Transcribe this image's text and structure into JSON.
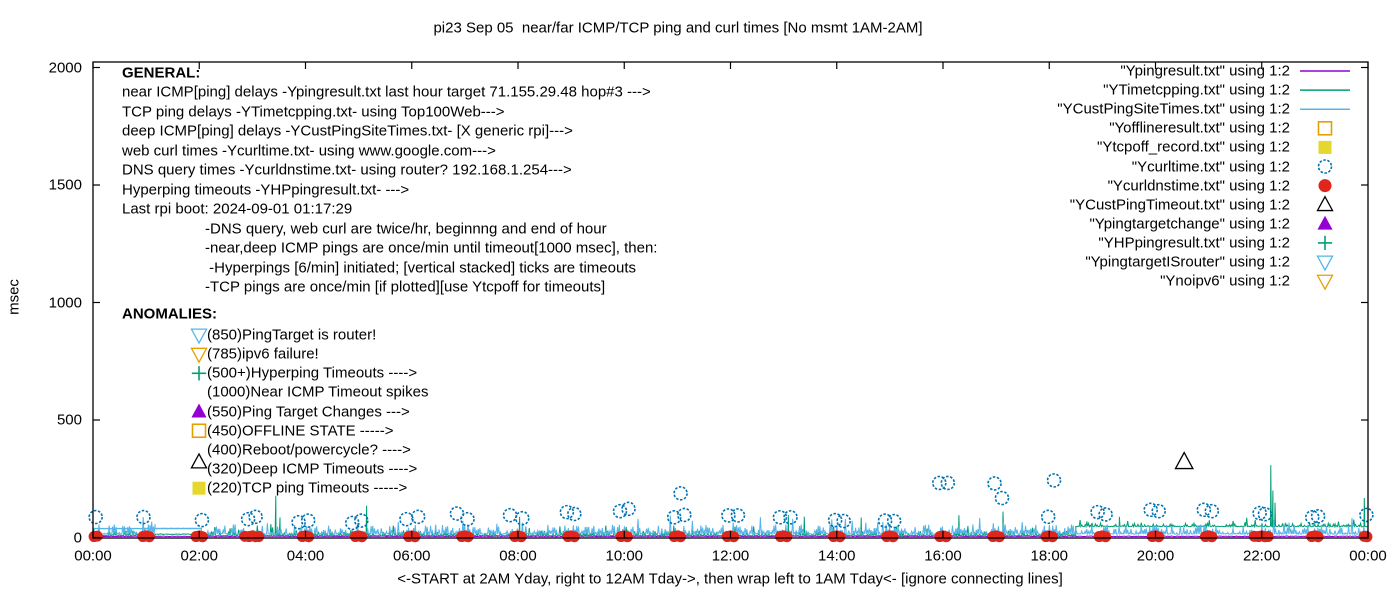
{
  "chart_data": {
    "type": "line+scatter",
    "title": "pi23 Sep 05  near/far ICMP/TCP ping and curl times [No msmt 1AM-2AM]",
    "ylabel": "msec",
    "xlabel": "<-START at 2AM Yday, right to 12AM Tday->, then wrap left to 1AM Tday<- [ignore connecting lines]",
    "x_axis": {
      "range_hours": [
        0,
        24
      ],
      "tick_hours": [
        0,
        2,
        4,
        6,
        8,
        10,
        12,
        14,
        16,
        18,
        20,
        22,
        24
      ],
      "tick_labels": [
        "00:00",
        "02:00",
        "04:00",
        "06:00",
        "08:00",
        "10:00",
        "12:00",
        "14:00",
        "16:00",
        "18:00",
        "20:00",
        "22:00",
        "00:00"
      ]
    },
    "y_axis": {
      "range": [
        0,
        2000
      ],
      "ticks": [
        0,
        500,
        1000,
        1500,
        2000
      ],
      "tick_labels": [
        "0",
        "500",
        "1000",
        "1500",
        "2000"
      ]
    },
    "colors": {
      "purple": "#9400d3",
      "seagreen": "#009e73",
      "skyblue": "#56b4e9",
      "orange": "#e69f00",
      "yellow": "#e6d72e",
      "blue": "#0072b2",
      "red": "#e0261a",
      "black": "#000000"
    },
    "legend": {
      "entries": [
        {
          "label": "\"Ypingresult.txt\" using 1:2",
          "color": "#9400d3",
          "style": "line"
        },
        {
          "label": "\"YTimetcpping.txt\" using 1:2",
          "color": "#009e73",
          "style": "line"
        },
        {
          "label": "\"YCustPingSiteTimes.txt\" using 1:2",
          "color": "#56b4e9",
          "style": "line"
        },
        {
          "label": "\"Yofflineresult.txt\" using 1:2",
          "color": "#e69f00",
          "style": "square-open"
        },
        {
          "label": "\"Ytcpoff_record.txt\" using 1:2",
          "color": "#e6d72e",
          "style": "square-filled"
        },
        {
          "label": "\"Ycurltime.txt\" using 1:2",
          "color": "#0072b2",
          "style": "circle-open"
        },
        {
          "label": "\"Ycurldnstime.txt\" using 1:2",
          "color": "#e0261a",
          "style": "circle-filled"
        },
        {
          "label": "\"YCustPingTimeout.txt\" using 1:2",
          "color": "#000000",
          "style": "tri-up-open"
        },
        {
          "label": "\"Ypingtargetchange\" using 1:2",
          "color": "#9400d3",
          "style": "tri-up-filled"
        },
        {
          "label": "\"YHPpingresult.txt\" using 1:2",
          "color": "#009e73",
          "style": "plus"
        },
        {
          "label": "\"YpingtargetISrouter\" using 1:2",
          "color": "#56b4e9",
          "style": "tri-down-open"
        },
        {
          "label": "\"Ynoipv6\" using 1:2",
          "color": "#e69f00",
          "style": "tri-down-open"
        }
      ]
    },
    "annotations": {
      "general": {
        "heading": "GENERAL:",
        "lines": [
          "near ICMP[ping] delays -Ypingresult.txt last hour target 71.155.29.48 hop#3 --->",
          "TCP ping delays -YTimetcpping.txt- using Top100Web--->",
          "deep ICMP[ping] delays -YCustPingSiteTimes.txt- [X generic rpi]--->",
          "web curl times -Ycurltime.txt- using www.google.com--->",
          "DNS query times -Ycurldnstime.txt- using router? 192.168.1.254--->",
          "Hyperping timeouts -YHPpingresult.txt- --->",
          "Last rpi boot: 2024-09-01 01:17:29"
        ],
        "indented_lines": [
          "-DNS query, web curl are twice/hr, beginnng and end of hour",
          "-near,deep ICMP pings are once/min until timeout[1000 msec], then:",
          " -Hyperpings [6/min] initiated; [vertical stacked] ticks are timeouts",
          "-TCP pings are once/min [if plotted][use Ytcpoff for timeouts]"
        ]
      },
      "anomalies": {
        "heading": "ANOMALIES:",
        "items": [
          {
            "marker": "tri-down-open",
            "color": "#56b4e9",
            "label": "(850)PingTarget is router!"
          },
          {
            "marker": "tri-down-open",
            "color": "#e69f00",
            "label": "(785)ipv6 failure!"
          },
          {
            "marker": "plus",
            "color": "#009e73",
            "label": "(500+)Hyperping Timeouts ---->"
          },
          {
            "marker": null,
            "color": null,
            "label": "(1000)Near ICMP Timeout spikes"
          },
          {
            "marker": "tri-up-filled",
            "color": "#9400d3",
            "label": "(550)Ping Target Changes --->"
          },
          {
            "marker": "square-open",
            "color": "#e69f00",
            "label": "(450)OFFLINE STATE ----->"
          },
          {
            "marker": null,
            "color": null,
            "label": "(400)Reboot/powercycle? ---->"
          },
          {
            "marker": "tri-up-open",
            "color": "#000000",
            "label": "(320)Deep ICMP Timeouts ---->",
            "raise": true
          },
          {
            "marker": "square-filled",
            "color": "#e6d72e",
            "label": "(220)TCP ping Timeouts ----->"
          }
        ]
      }
    },
    "series": {
      "ypingresult": {
        "label": "Ypingresult.txt",
        "desc": "near ICMP ping delay",
        "color": "#9400d3",
        "style": "line",
        "segments": [
          {
            "t0": 0,
            "t1": 24,
            "base": 4,
            "amp": 3,
            "spike_rate": 0,
            "spike_amp": 0
          }
        ],
        "spikes": []
      },
      "ytimetcpping": {
        "label": "YTimetcpping.txt",
        "desc": "TCP ping delay",
        "color": "#009e73",
        "style": "line",
        "segments": [
          {
            "t0": 0,
            "t1": 1.17,
            "base": 8,
            "amp": 22,
            "spike_rate": 0.06,
            "spike_amp": 30
          },
          {
            "t0": 1.17,
            "t1": 2.02,
            "base": 13,
            "amp": 3,
            "spike_rate": 0,
            "spike_amp": 0
          },
          {
            "t0": 2.02,
            "t1": 18.5,
            "base": 7,
            "amp": 24,
            "spike_rate": 0.1,
            "spike_amp": 45
          },
          {
            "t0": 18.5,
            "t1": 24,
            "base": 46,
            "amp": 15,
            "spike_rate": 0.08,
            "spike_amp": 28
          }
        ],
        "spikes": [
          [
            3.44,
            178
          ],
          [
            3.52,
            85
          ],
          [
            5.15,
            135
          ],
          [
            8.03,
            88
          ],
          [
            13.09,
            95
          ],
          [
            13.39,
            88
          ],
          [
            14.46,
            85
          ],
          [
            16.3,
            95
          ],
          [
            17.13,
            110
          ],
          [
            19.32,
            88
          ],
          [
            22.17,
            308
          ],
          [
            22.21,
            200
          ],
          [
            22.25,
            148
          ],
          [
            23.93,
            168
          ]
        ]
      },
      "ycustpingsitetimes": {
        "label": "YCustPingSiteTimes.txt",
        "desc": "deep ICMP ping delay",
        "color": "#56b4e9",
        "style": "line",
        "segments": [
          {
            "t0": 0,
            "t1": 1.17,
            "base": 14,
            "amp": 44,
            "spike_rate": 0.12,
            "spike_amp": 35
          },
          {
            "t0": 1.17,
            "t1": 2.05,
            "base": 38,
            "amp": 2,
            "spike_rate": 0,
            "spike_amp": 0
          },
          {
            "t0": 2.05,
            "t1": 24,
            "base": 14,
            "amp": 42,
            "spike_rate": 0.12,
            "spike_amp": 40
          }
        ],
        "spikes": [],
        "flat_overlays": [
          {
            "t0": 0,
            "t1": 2.05,
            "v": 38
          }
        ]
      },
      "ycurltime": {
        "label": "Ycurltime.txt",
        "desc": "web curl times (twice/hr)",
        "color": "#0072b2",
        "style": "circle-open",
        "points": [
          [
            0.05,
            87
          ],
          [
            0.95,
            87
          ],
          [
            2.05,
            74
          ],
          [
            2.92,
            78
          ],
          [
            3.06,
            88
          ],
          [
            3.87,
            65
          ],
          [
            4.05,
            72
          ],
          [
            4.88,
            62
          ],
          [
            5.05,
            72
          ],
          [
            5.9,
            78
          ],
          [
            6.12,
            88
          ],
          [
            6.85,
            102
          ],
          [
            7.05,
            78
          ],
          [
            7.85,
            95
          ],
          [
            8.08,
            82
          ],
          [
            8.92,
            108
          ],
          [
            9.06,
            100
          ],
          [
            9.92,
            112
          ],
          [
            10.08,
            122
          ],
          [
            10.94,
            86
          ],
          [
            11.06,
            188
          ],
          [
            11.13,
            96
          ],
          [
            11.96,
            94
          ],
          [
            12.14,
            94
          ],
          [
            12.93,
            86
          ],
          [
            13.13,
            86
          ],
          [
            13.97,
            74
          ],
          [
            14.13,
            70
          ],
          [
            14.91,
            72
          ],
          [
            15.08,
            70
          ],
          [
            15.93,
            232
          ],
          [
            16.09,
            232
          ],
          [
            16.97,
            230
          ],
          [
            17.11,
            168
          ],
          [
            17.98,
            88
          ],
          [
            18.09,
            243
          ],
          [
            18.91,
            108
          ],
          [
            19.06,
            98
          ],
          [
            19.91,
            118
          ],
          [
            20.06,
            112
          ],
          [
            20.91,
            118
          ],
          [
            21.06,
            112
          ],
          [
            21.96,
            104
          ],
          [
            22.06,
            99
          ],
          [
            22.95,
            86
          ],
          [
            23.06,
            90
          ],
          [
            23.97,
            96
          ]
        ]
      },
      "ycurldnstime": {
        "label": "Ycurldnstime.txt",
        "desc": "DNS query times (twice/hr)",
        "color": "#e0261a",
        "style": "circle-filled",
        "clusters": {
          "hours": [
            0,
            1,
            2,
            3,
            4,
            5,
            6,
            7,
            8,
            9,
            10,
            11,
            12,
            13,
            14,
            15,
            16,
            17,
            18,
            19,
            20,
            21,
            22,
            23,
            24
          ],
          "default_offsets": [
            -0.06,
            0.0,
            0.06
          ],
          "default_values": [
            4,
            7,
            3
          ],
          "wide_hours": [
            3,
            22
          ],
          "wide_extra_offsets": [
            -0.14,
            0.12
          ],
          "wide_extra_values": [
            5,
            4
          ],
          "first_offsets": [
            0.02,
            0.08
          ],
          "first_values": [
            4,
            6
          ],
          "last_offsets": [
            -0.07,
            -0.02
          ],
          "last_values": [
            5,
            3
          ]
        }
      },
      "ycustpingtimeout": {
        "label": "YCustPingTimeout.txt",
        "desc": "deep ICMP timeout",
        "color": "#000000",
        "style": "tri-up-open",
        "points": [
          [
            20.54,
            322
          ]
        ]
      },
      "yofflineresult": {
        "label": "Yofflineresult.txt",
        "color": "#e69f00",
        "style": "square-open",
        "points": []
      },
      "ytcpoff_record": {
        "label": "Ytcpoff_record.txt",
        "color": "#e6d72e",
        "style": "square-filled",
        "points": []
      },
      "ypingtargetchange": {
        "label": "Ypingtargetchange",
        "color": "#9400d3",
        "style": "tri-up-filled",
        "points": []
      },
      "yhppingresult": {
        "label": "YHPpingresult.txt",
        "color": "#009e73",
        "style": "plus",
        "points": []
      },
      "ypingtargetisrouter": {
        "label": "YpingtargetISrouter",
        "color": "#56b4e9",
        "style": "tri-down-open",
        "points": []
      },
      "ynoipv6": {
        "label": "Ynoipv6",
        "color": "#e69f00",
        "style": "tri-down-open",
        "points": []
      }
    }
  }
}
